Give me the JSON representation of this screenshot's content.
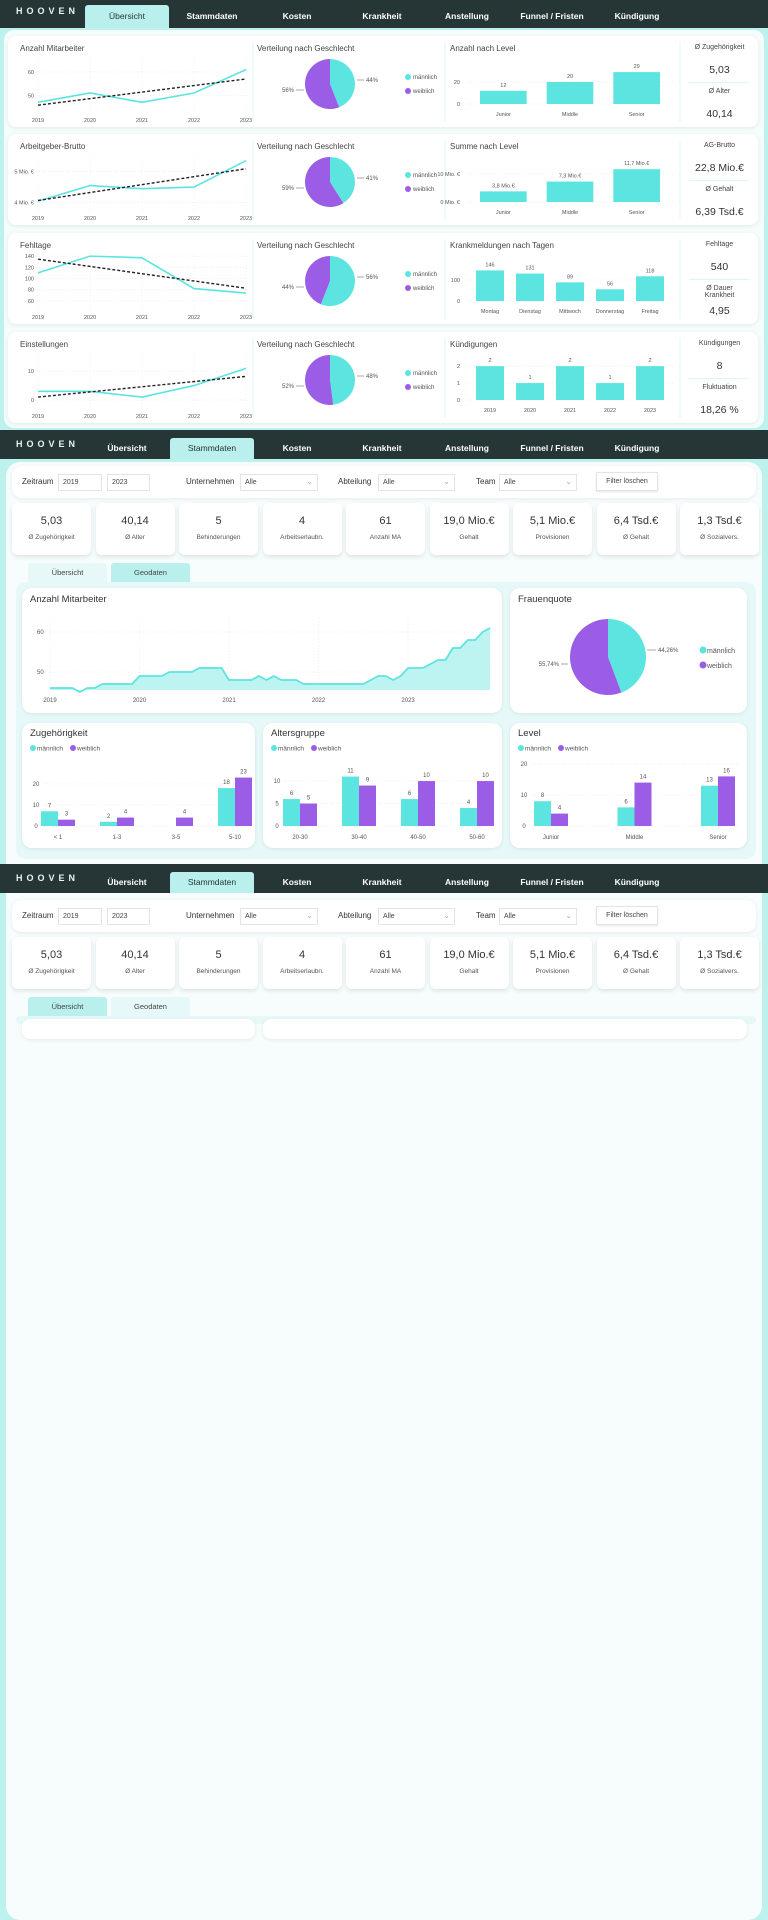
{
  "nav": {
    "logo": "HOOVEN",
    "tabs": [
      "Übersicht",
      "Stammdaten",
      "Kosten",
      "Krankheit",
      "Anstellung",
      "Funnel / Fristen",
      "Kündigung"
    ]
  },
  "colors": {
    "maennlich": "#5ce5e0",
    "weiblich": "#9b5de5",
    "nav": "#263535",
    "background": "#bdf1ee"
  },
  "legend": {
    "m": "männlich",
    "w": "weiblich"
  },
  "overview": {
    "rows": [
      {
        "line": {
          "title": "Anzahl Mitarbeiter",
          "x": [
            "2019",
            "2020",
            "2021",
            "2022",
            "2023"
          ],
          "y": [
            47,
            51,
            47,
            51,
            61
          ],
          "yticks": [
            50,
            60
          ],
          "ytick_labels": [
            "50",
            "60"
          ],
          "ylim": [
            42,
            66
          ],
          "trend": "linear"
        },
        "pie": {
          "title": "Verteilung nach Geschlecht",
          "m_label": "44%",
          "w_label": "56%",
          "m": 44
        },
        "bar": {
          "title": "Anzahl nach Level",
          "categories": [
            "Junior",
            "Middle",
            "Senior"
          ],
          "values": [
            12,
            20,
            29
          ],
          "labels": [
            "12",
            "20",
            "29"
          ],
          "yticks": [
            0,
            20
          ],
          "ytick_labels": [
            "0",
            "20"
          ],
          "ylim": [
            0,
            40
          ]
        },
        "kpis": [
          {
            "label": "Ø Zugehörigkeit",
            "value": "5,03"
          },
          {
            "label": "Ø Alter",
            "value": "40,14"
          }
        ]
      },
      {
        "line": {
          "title": "Arbeitgeber-Brutto",
          "x": [
            "2019",
            "2020",
            "2021",
            "2022",
            "2023"
          ],
          "y": [
            4.05,
            4.55,
            4.45,
            4.5,
            5.35
          ],
          "yticks": [
            4,
            5
          ],
          "ytick_labels": [
            "4 Mio. €",
            "5 Mio. €"
          ],
          "ylim": [
            3.7,
            5.5
          ],
          "trend": "linear"
        },
        "pie": {
          "title": "Verteilung nach Geschlecht",
          "m_label": "41%",
          "w_label": "59%",
          "m": 41
        },
        "bar": {
          "title": "Summe nach Level",
          "categories": [
            "Junior",
            "Middle",
            "Senior"
          ],
          "values": [
            3.8,
            7.3,
            11.7
          ],
          "labels": [
            "3,8 Mio.€",
            "7,3 Mio.€",
            "11,7 Mio.€"
          ],
          "yticks": [
            0,
            10
          ],
          "ytick_labels": [
            "0 Mio. €",
            "10 Mio. €"
          ],
          "ylim": [
            0,
            15.7
          ]
        },
        "kpis": [
          {
            "label": "AG-Brutto",
            "value": "22,8 Mio.€"
          },
          {
            "label": "Ø Gehalt",
            "value": "6,39 Tsd.€"
          }
        ]
      },
      {
        "line": {
          "title": "Fehltage",
          "x": [
            "2019",
            "2020",
            "2021",
            "2022",
            "2023"
          ],
          "y": [
            110,
            140,
            137,
            82,
            74
          ],
          "yticks": [
            60,
            80,
            100,
            120,
            140
          ],
          "ytick_labels": [
            "60",
            "80",
            "100",
            "120",
            "140"
          ],
          "ylim": [
            42,
            142
          ],
          "trend": "linear"
        },
        "pie": {
          "title": "Verteilung nach Geschlecht",
          "m_label": "56%",
          "w_label": "44%",
          "m": 56
        },
        "bar": {
          "title": "Krankmeldungen nach Tagen",
          "categories": [
            "Montag",
            "Dienstag",
            "Mittwoch",
            "Donnerstag",
            "Freitag"
          ],
          "values": [
            146,
            131,
            89,
            56,
            118
          ],
          "labels": [
            "146",
            "131",
            "89",
            "56",
            "118"
          ],
          "yticks": [
            0,
            100
          ],
          "ytick_labels": [
            "0",
            "100"
          ],
          "ylim": [
            0,
            210
          ]
        },
        "kpis": [
          {
            "label": "Fehltage",
            "value": "540"
          },
          {
            "label": "Ø Dauer Krankheit",
            "value": "4,95"
          }
        ]
      },
      {
        "line": {
          "title": "Einstellungen",
          "x": [
            "2019",
            "2020",
            "2021",
            "2022",
            "2023"
          ],
          "y": [
            3,
            3,
            1,
            5,
            11
          ],
          "yticks": [
            0,
            10
          ],
          "ytick_labels": [
            "0",
            "10"
          ],
          "ylim": [
            -3.5,
            16
          ],
          "trend": "linear"
        },
        "pie": {
          "title": "Verteilung nach Geschlecht",
          "m_label": "48%",
          "w_label": "52%",
          "m": 48
        },
        "bar": {
          "title": "Kündigungen",
          "categories": [
            "2019",
            "2020",
            "2021",
            "2022",
            "2023"
          ],
          "values": [
            2,
            1,
            2,
            1,
            2
          ],
          "labels": [
            "2",
            "1",
            "2",
            "1",
            "2"
          ],
          "yticks": [
            0,
            1,
            2
          ],
          "ytick_labels": [
            "0",
            "1",
            "2"
          ],
          "ylim": [
            0,
            2.6
          ]
        },
        "kpis": [
          {
            "label": "Kündigungen",
            "value": "8"
          },
          {
            "label": "Fluktuation",
            "value": "18,26 %"
          }
        ]
      }
    ]
  },
  "stammdaten": {
    "filters": {
      "zeitraum_label": "Zeitraum",
      "from": "2019",
      "to": "2023",
      "unternehmen_label": "Unternehmen",
      "unternehmen": "Alle",
      "abteilung_label": "Abteilung",
      "abteilung": "Alle",
      "team_label": "Team",
      "team": "Alle",
      "clear": "Filter löschen"
    },
    "kpis": [
      {
        "value": "5,03",
        "label": "Ø Zugehörigkeit"
      },
      {
        "value": "40,14",
        "label": "Ø Alter"
      },
      {
        "value": "5",
        "label": "Behinderungen"
      },
      {
        "value": "4",
        "label": "Arbeitserlaubn."
      },
      {
        "value": "61",
        "label": "Anzahl MA"
      },
      {
        "value": "19,0 Mio.€",
        "label": "Gehalt"
      },
      {
        "value": "5,1 Mio.€",
        "label": "Provisionen"
      },
      {
        "value": "6,4 Tsd.€",
        "label": "Ø Gehalt"
      },
      {
        "value": "1,3 Tsd.€",
        "label": "Ø Sozialvers."
      }
    ],
    "subtabs": [
      "Übersicht",
      "Geodaten"
    ],
    "chart_data": [
      {
        "type": "area",
        "title": "Anzahl Mitarbeiter",
        "x_ticks": [
          "2019",
          "2020",
          "2021",
          "2022",
          "2023"
        ],
        "x_start": "2019-01",
        "x_step": "month",
        "y": [
          46,
          46,
          46,
          46,
          45,
          46,
          46,
          47,
          47,
          47,
          47,
          47,
          49,
          49,
          49,
          49,
          50,
          50,
          50,
          50,
          51,
          51,
          51,
          51,
          48,
          48,
          48,
          48,
          49,
          48,
          49,
          48,
          48,
          48,
          47,
          47,
          47,
          47,
          47,
          47,
          47,
          47,
          47,
          48,
          49,
          49,
          48,
          49,
          51,
          51,
          51,
          52,
          53,
          53,
          56,
          56,
          58,
          58,
          60,
          61
        ],
        "yticks": [
          50,
          60
        ],
        "ytick_labels": [
          "50",
          "60"
        ],
        "ylim": [
          45.5,
          64
        ]
      },
      {
        "type": "pie",
        "title": "Frauenquote",
        "slices": [
          {
            "name": "männlich",
            "value": 44.26,
            "label": "44,26%"
          },
          {
            "name": "weiblich",
            "value": 55.74,
            "label": "55,74%"
          }
        ]
      },
      {
        "type": "bar",
        "title": "Zugehörigkeit",
        "categories": [
          "< 1",
          "1-3",
          "3-5",
          "5-10"
        ],
        "series": [
          {
            "name": "männlich",
            "values": [
              7,
              2,
              null,
              18
            ]
          },
          {
            "name": "weiblich",
            "values": [
              3,
              4,
              4,
              23
            ]
          }
        ],
        "yticks": [
          0,
          10,
          20
        ],
        "ylim": [
          0,
          38
        ]
      },
      {
        "type": "bar",
        "title": "Altersgruppe",
        "categories": [
          "20-30",
          "30-40",
          "40-50",
          "50-60"
        ],
        "series": [
          {
            "name": "männlich",
            "values": [
              6,
              11,
              6,
              4
            ]
          },
          {
            "name": "weiblich",
            "values": [
              5,
              9,
              10,
              10
            ]
          }
        ],
        "yticks": [
          0,
          5,
          10
        ],
        "ylim": [
          0,
          17.8
        ]
      },
      {
        "type": "bar",
        "title": "Level",
        "categories": [
          "Junior",
          "Middle",
          "Senior"
        ],
        "series": [
          {
            "name": "männlich",
            "values": [
              8,
              6,
              13
            ]
          },
          {
            "name": "weiblich",
            "values": [
              4,
              14,
              16
            ]
          }
        ],
        "yticks": [
          0,
          10,
          20
        ],
        "ylim": [
          0,
          25.8
        ]
      }
    ]
  }
}
